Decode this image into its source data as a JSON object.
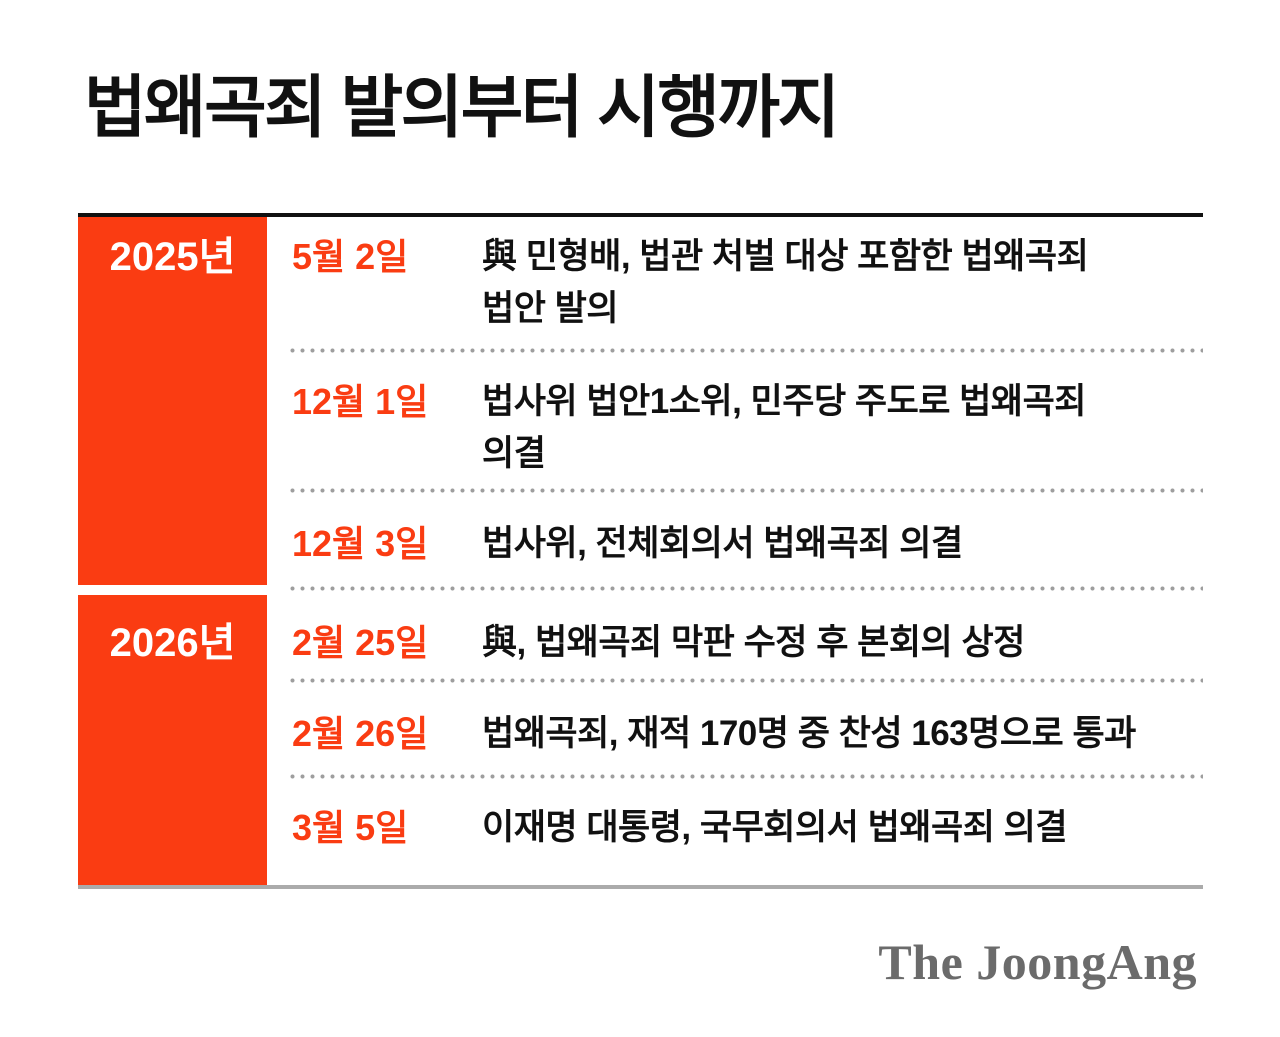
{
  "title": "법왜곡죄 발의부터 시행까지",
  "brand": {
    "logo_text": "The JoongAng"
  },
  "colors": {
    "accent_orange": "#FA3C12",
    "text_black": "#111111",
    "logo_gray": "#6B6B6B",
    "divider_gray": "#ABABAB",
    "dot_gray": "#9E9E9E"
  },
  "timeline": {
    "groups": [
      {
        "year": "2025년",
        "events": [
          {
            "date": "5월 2일",
            "description": "與 민형배, 법관 처벌 대상 포함한 법왜곡죄\n법안 발의"
          },
          {
            "date": "12월 1일",
            "description": "법사위 법안1소위, 민주당 주도로 법왜곡죄\n의결"
          },
          {
            "date": "12월 3일",
            "description": "법사위, 전체회의서 법왜곡죄 의결"
          }
        ]
      },
      {
        "year": "2026년",
        "events": [
          {
            "date": "2월 25일",
            "description": "與, 법왜곡죄 막판 수정 후 본회의 상정"
          },
          {
            "date": "2월 26일",
            "description": "법왜곡죄, 재적 170명 중 찬성 163명으로 통과"
          },
          {
            "date": "3월 5일",
            "description": "이재명 대통령, 국무회의서 법왜곡죄 의결"
          }
        ]
      }
    ]
  }
}
